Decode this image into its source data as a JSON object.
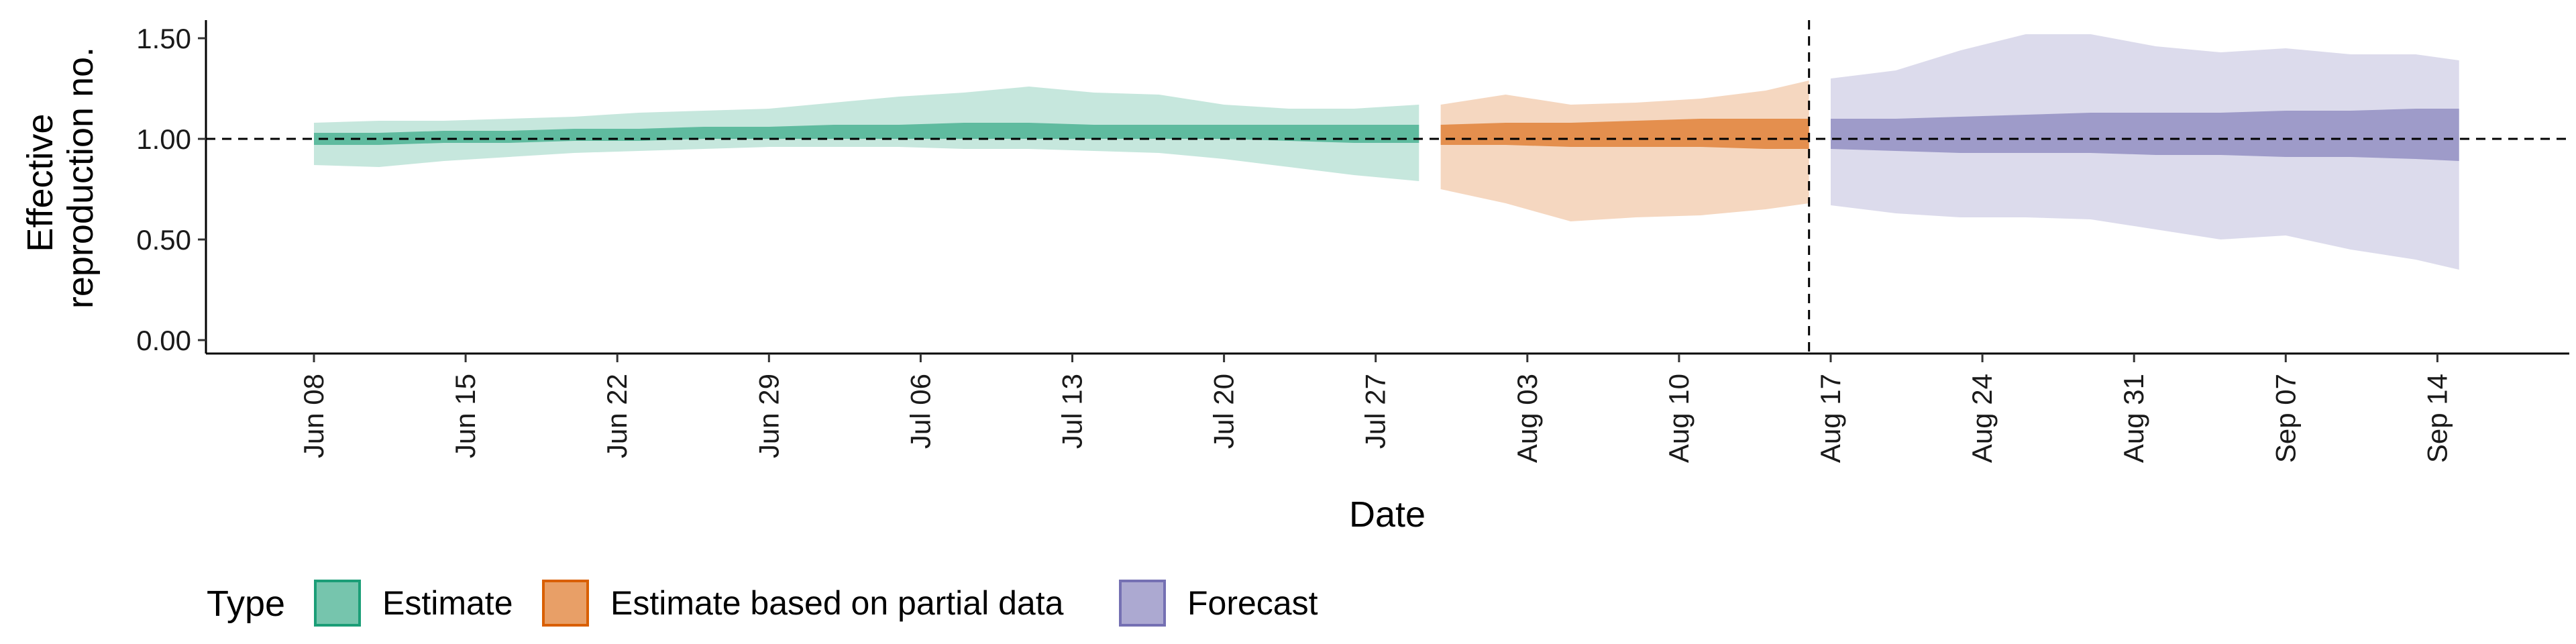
{
  "chart_data": {
    "type": "area",
    "xlabel": "Date",
    "ylabel": "Effective reproduction no.",
    "ylabel_lines": [
      "Effective",
      "reproduction no."
    ],
    "x_range": [
      "2020-06-01",
      "2020-09-21"
    ],
    "ylim": [
      -0.05,
      1.6
    ],
    "y_ticks": [
      {
        "value": 0.0,
        "label": "0.00"
      },
      {
        "value": 0.5,
        "label": "0.50"
      },
      {
        "value": 1.0,
        "label": "1.00"
      },
      {
        "value": 1.5,
        "label": "1.50"
      }
    ],
    "x_ticks": [
      {
        "date": "2020-06-08",
        "label": "Jun 08"
      },
      {
        "date": "2020-06-15",
        "label": "Jun 15"
      },
      {
        "date": "2020-06-22",
        "label": "Jun 22"
      },
      {
        "date": "2020-06-29",
        "label": "Jun 29"
      },
      {
        "date": "2020-07-06",
        "label": "Jul 06"
      },
      {
        "date": "2020-07-13",
        "label": "Jul 13"
      },
      {
        "date": "2020-07-20",
        "label": "Jul 20"
      },
      {
        "date": "2020-07-27",
        "label": "Jul 27"
      },
      {
        "date": "2020-08-03",
        "label": "Aug 03"
      },
      {
        "date": "2020-08-10",
        "label": "Aug 10"
      },
      {
        "date": "2020-08-17",
        "label": "Aug 17"
      },
      {
        "date": "2020-08-24",
        "label": "Aug 24"
      },
      {
        "date": "2020-08-31",
        "label": "Aug 31"
      },
      {
        "date": "2020-09-07",
        "label": "Sep 07"
      },
      {
        "date": "2020-09-14",
        "label": "Sep 14"
      }
    ],
    "reference_line_y": 1.0,
    "vertical_line_date": "2020-08-16",
    "grid": false,
    "legend": {
      "title": "Type",
      "position": "bottom",
      "items": [
        {
          "label": "Estimate",
          "color": "#1b9e77"
        },
        {
          "label": "Estimate based on partial data",
          "color": "#d95f02"
        },
        {
          "label": "Forecast",
          "color": "#7570b3"
        }
      ]
    },
    "series": [
      {
        "name": "Estimate",
        "color": "#1b9e77",
        "x": [
          "2020-06-08",
          "2020-06-11",
          "2020-06-14",
          "2020-06-17",
          "2020-06-20",
          "2020-06-23",
          "2020-06-26",
          "2020-06-29",
          "2020-07-02",
          "2020-07-05",
          "2020-07-08",
          "2020-07-11",
          "2020-07-14",
          "2020-07-17",
          "2020-07-20",
          "2020-07-23",
          "2020-07-26",
          "2020-07-29"
        ],
        "lower_90": [
          0.87,
          0.86,
          0.89,
          0.91,
          0.93,
          0.94,
          0.95,
          0.96,
          0.96,
          0.96,
          0.95,
          0.95,
          0.94,
          0.93,
          0.9,
          0.86,
          0.82,
          0.79
        ],
        "upper_90": [
          1.08,
          1.09,
          1.09,
          1.1,
          1.11,
          1.13,
          1.14,
          1.15,
          1.18,
          1.21,
          1.23,
          1.26,
          1.23,
          1.22,
          1.17,
          1.15,
          1.15,
          1.17
        ],
        "lower_50": [
          0.97,
          0.97,
          0.98,
          0.98,
          0.99,
          0.99,
          1.0,
          1.0,
          1.0,
          1.0,
          1.0,
          1.0,
          1.0,
          1.0,
          1.0,
          0.99,
          0.98,
          0.98
        ],
        "upper_50": [
          1.03,
          1.03,
          1.04,
          1.04,
          1.05,
          1.05,
          1.06,
          1.06,
          1.07,
          1.07,
          1.08,
          1.08,
          1.07,
          1.07,
          1.07,
          1.07,
          1.07,
          1.07
        ]
      },
      {
        "name": "Estimate based on partial data",
        "color": "#d95f02",
        "x": [
          "2020-07-30",
          "2020-08-02",
          "2020-08-05",
          "2020-08-08",
          "2020-08-11",
          "2020-08-14",
          "2020-08-16"
        ],
        "lower_90": [
          0.75,
          0.68,
          0.59,
          0.61,
          0.62,
          0.65,
          0.68
        ],
        "upper_90": [
          1.17,
          1.22,
          1.17,
          1.18,
          1.2,
          1.24,
          1.29
        ],
        "lower_50": [
          0.97,
          0.97,
          0.96,
          0.96,
          0.96,
          0.95,
          0.95
        ],
        "upper_50": [
          1.07,
          1.08,
          1.08,
          1.09,
          1.1,
          1.1,
          1.1
        ]
      },
      {
        "name": "Forecast",
        "color": "#7570b3",
        "x": [
          "2020-08-17",
          "2020-08-20",
          "2020-08-23",
          "2020-08-26",
          "2020-08-29",
          "2020-09-01",
          "2020-09-04",
          "2020-09-07",
          "2020-09-10",
          "2020-09-13",
          "2020-09-15"
        ],
        "lower_90": [
          0.67,
          0.63,
          0.61,
          0.61,
          0.6,
          0.55,
          0.5,
          0.52,
          0.45,
          0.4,
          0.35
        ],
        "upper_90": [
          1.3,
          1.34,
          1.44,
          1.52,
          1.52,
          1.46,
          1.43,
          1.45,
          1.42,
          1.42,
          1.39
        ],
        "lower_50": [
          0.95,
          0.94,
          0.93,
          0.93,
          0.93,
          0.92,
          0.92,
          0.91,
          0.91,
          0.9,
          0.89
        ],
        "upper_50": [
          1.1,
          1.1,
          1.11,
          1.12,
          1.13,
          1.13,
          1.13,
          1.14,
          1.14,
          1.15,
          1.15
        ]
      }
    ]
  }
}
